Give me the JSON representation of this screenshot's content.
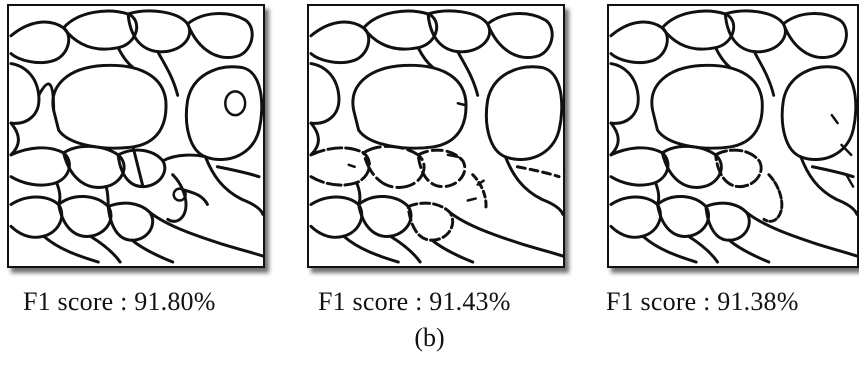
{
  "panels": [
    {
      "score_label": "F1 score : 91.80%"
    },
    {
      "score_label": "F1 score : 91.43%"
    },
    {
      "score_label": "F1 score : 91.38%"
    }
  ],
  "caption": "(b)",
  "colors": {
    "boundary": "#111111",
    "background": "#ffffff"
  }
}
